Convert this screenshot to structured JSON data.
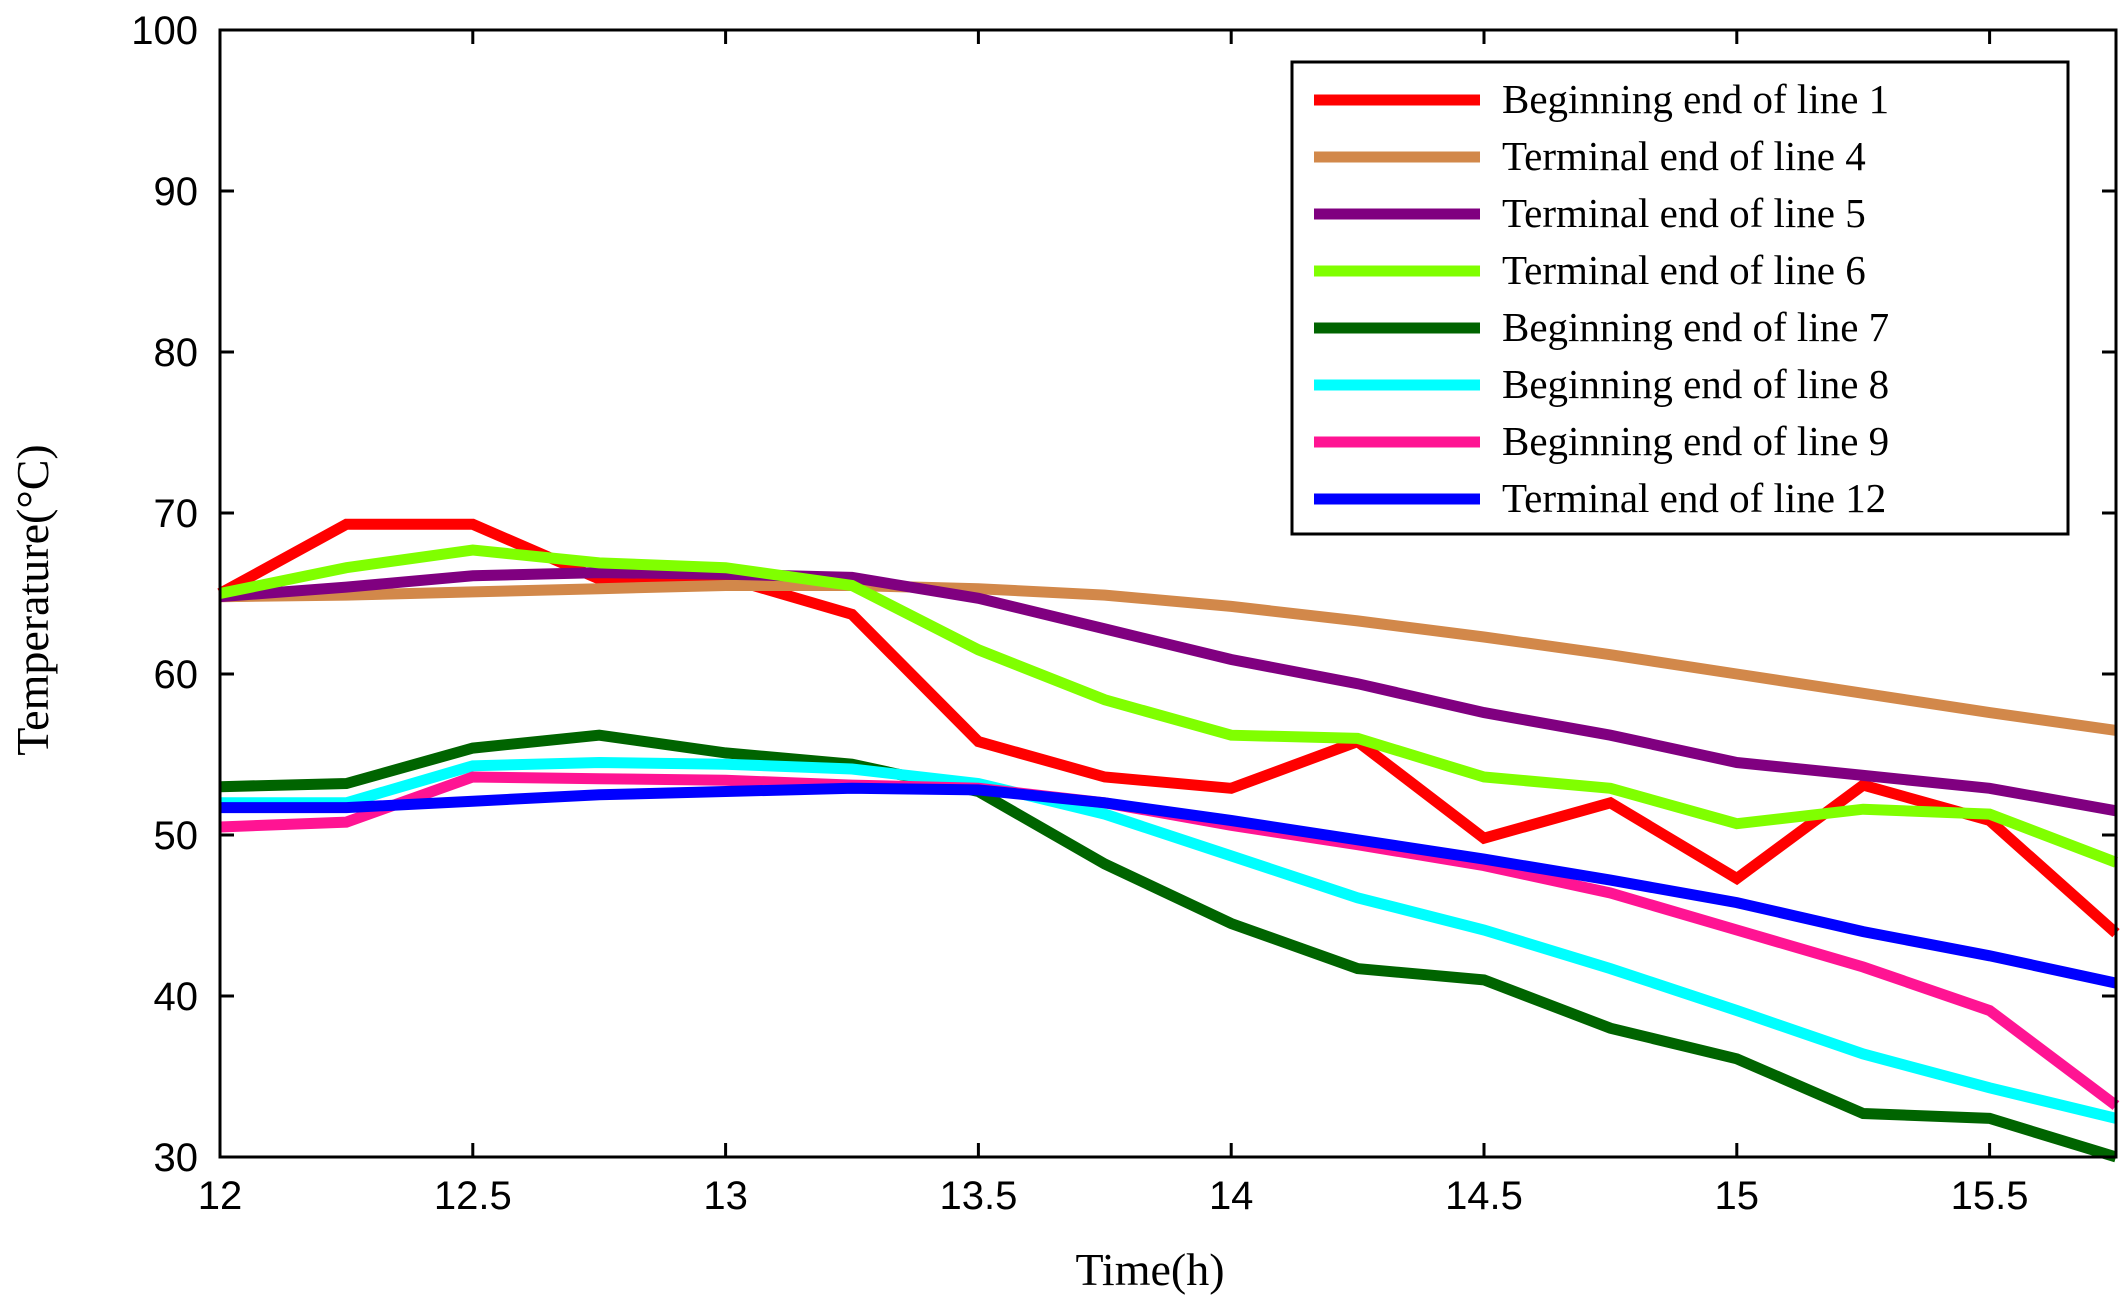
{
  "chart_data": {
    "type": "line",
    "title": "",
    "xlabel": "Time(h)",
    "ylabel": "Temperature(°C)",
    "xlim": [
      12,
      15.75
    ],
    "ylim": [
      30,
      100
    ],
    "xticks": [
      12,
      12.5,
      13,
      13.5,
      14,
      14.5,
      15,
      15.5
    ],
    "xtick_labels": [
      "12",
      "12.5",
      "13",
      "13.5",
      "14",
      "14.5",
      "15",
      "15.5"
    ],
    "yticks": [
      30,
      40,
      50,
      60,
      70,
      80,
      90,
      100
    ],
    "ytick_labels": [
      "30",
      "40",
      "50",
      "60",
      "70",
      "80",
      "90",
      "100"
    ],
    "grid": false,
    "legend_position": "top-right",
    "x": [
      12,
      12.25,
      12.5,
      12.75,
      13,
      13.25,
      13.5,
      13.75,
      14,
      14.25,
      14.5,
      14.75,
      15,
      15.25,
      15.5,
      15.75
    ],
    "series": [
      {
        "name": "Beginning end of line 1",
        "color": "#ff0000",
        "values": [
          65.0,
          69.3,
          69.3,
          65.9,
          66.0,
          63.7,
          55.8,
          53.6,
          52.9,
          55.8,
          49.8,
          52.0,
          47.3,
          53.1,
          50.9,
          43.9
        ]
      },
      {
        "name": "Terminal end of line 4",
        "color": "#d2884a",
        "values": [
          64.8,
          64.9,
          65.1,
          65.3,
          65.5,
          65.5,
          65.3,
          64.9,
          64.2,
          63.3,
          62.3,
          61.2,
          60.0,
          58.8,
          57.6,
          56.5
        ]
      },
      {
        "name": "Terminal end of line 5",
        "color": "#800080",
        "values": [
          64.8,
          65.4,
          66.1,
          66.3,
          66.2,
          66.0,
          64.7,
          62.8,
          60.9,
          59.4,
          57.6,
          56.2,
          54.5,
          53.7,
          52.9,
          51.5
        ]
      },
      {
        "name": "Terminal end of line 6",
        "color": "#80ff00",
        "values": [
          65.0,
          66.6,
          67.7,
          66.9,
          66.6,
          65.5,
          61.5,
          58.4,
          56.2,
          56.0,
          53.6,
          52.9,
          50.7,
          51.6,
          51.3,
          48.3
        ]
      },
      {
        "name": "Beginning end of line 7",
        "color": "#006400",
        "values": [
          53.0,
          53.2,
          55.4,
          56.2,
          55.1,
          54.4,
          52.7,
          48.2,
          44.5,
          41.7,
          41.0,
          38.0,
          36.1,
          32.7,
          32.4,
          30.0
        ]
      },
      {
        "name": "Beginning end of line 8",
        "color": "#00ffff",
        "values": [
          52.0,
          52.0,
          54.3,
          54.5,
          54.4,
          54.1,
          53.2,
          51.3,
          48.7,
          46.1,
          44.1,
          41.7,
          39.1,
          36.4,
          34.3,
          32.4
        ]
      },
      {
        "name": "Beginning end of line 9",
        "color": "#ff1493",
        "values": [
          50.5,
          50.8,
          53.6,
          53.5,
          53.4,
          53.1,
          52.9,
          52.0,
          50.6,
          49.4,
          48.1,
          46.4,
          44.1,
          41.8,
          39.1,
          33.2
        ]
      },
      {
        "name": "Terminal end of line 12",
        "color": "#0000ff",
        "values": [
          51.7,
          51.7,
          52.1,
          52.5,
          52.7,
          52.9,
          52.8,
          52.0,
          50.9,
          49.7,
          48.5,
          47.2,
          45.8,
          44.0,
          42.5,
          40.8
        ]
      }
    ]
  }
}
